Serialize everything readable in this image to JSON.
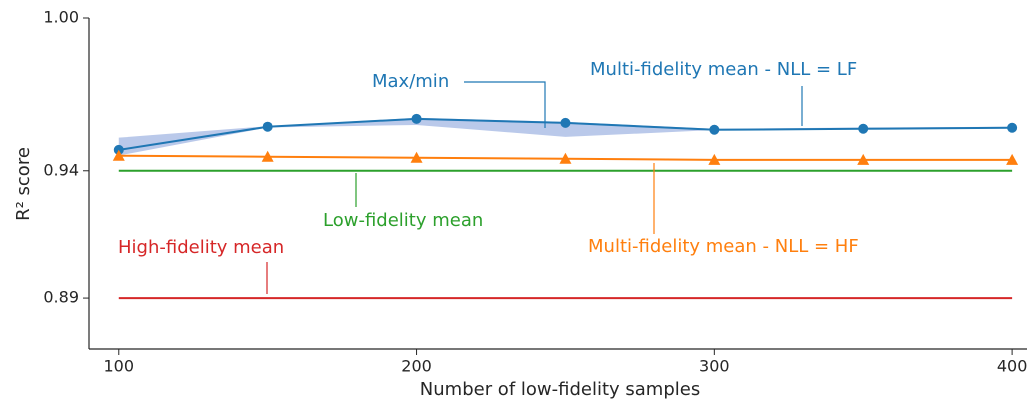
{
  "chart_data": {
    "type": "line",
    "x_label": "Number of low-fidelity samples",
    "y_label": "R² score",
    "x": [
      100,
      150,
      200,
      250,
      300,
      350,
      400
    ],
    "xlim": [
      90,
      405
    ],
    "ylim": [
      0.87,
      1.0
    ],
    "xticks": [
      100,
      200,
      300,
      400
    ],
    "yticks": [
      0.89,
      0.94,
      {
        "value": 1.0,
        "label": "1.00"
      }
    ],
    "band": {
      "name": "Max/min",
      "color": "#aebfe6",
      "upper": [
        0.953,
        0.9575,
        0.9608,
        0.9592,
        0.9565,
        0.957,
        0.9573
      ],
      "lower": [
        0.946,
        0.957,
        0.958,
        0.9533,
        0.956,
        0.9563,
        0.9567
      ]
    },
    "series": [
      {
        "name": "Multi-fidelity mean - NLL = LF",
        "color": "#1f77b4",
        "marker": "circle",
        "values": [
          0.9482,
          0.9573,
          0.9604,
          0.9588,
          0.9561,
          0.9565,
          0.9569
        ]
      },
      {
        "name": "Multi-fidelity mean - NLL = HF",
        "color": "#ff7f0e",
        "marker": "triangle",
        "values": [
          0.9459,
          0.9455,
          0.9451,
          0.9447,
          0.9443,
          0.9443,
          0.9443
        ]
      },
      {
        "name": "Low-fidelity mean",
        "color": "#2ca02c",
        "marker": "none",
        "values": [
          0.94,
          0.94,
          0.94,
          0.94,
          0.94,
          0.94,
          0.94
        ]
      },
      {
        "name": "High-fidelity mean",
        "color": "#d62728",
        "marker": "none",
        "values": [
          0.89,
          0.89,
          0.89,
          0.89,
          0.89,
          0.89,
          0.89
        ]
      }
    ]
  }
}
